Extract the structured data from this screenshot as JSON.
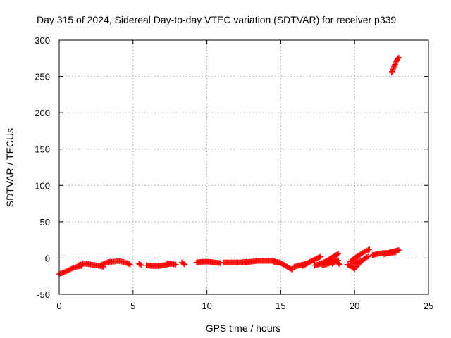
{
  "chart_data": {
    "type": "scatter",
    "title": "Day 315 of 2024, Sidereal Day-to-day VTEC variation (SDTVAR) for receiver p339",
    "xlabel": "GPS time / hours",
    "ylabel": "SDTVAR / TECUs",
    "xlim": [
      0,
      25
    ],
    "ylim": [
      -50,
      300
    ],
    "xticks": [
      0,
      5,
      10,
      15,
      20,
      25
    ],
    "yticks": [
      -50,
      0,
      50,
      100,
      150,
      200,
      250,
      300
    ],
    "grid": true,
    "marker": "plus",
    "series": [
      {
        "name": "SDTVAR",
        "color": "#ff0000",
        "segments": [
          [
            [
              0.0,
              -22
            ],
            [
              0.3,
              -20
            ],
            [
              0.6,
              -17
            ],
            [
              0.9,
              -14
            ],
            [
              1.2,
              -12
            ],
            [
              1.5,
              -11
            ]
          ],
          [
            [
              1.3,
              -10
            ],
            [
              1.6,
              -8
            ],
            [
              1.9,
              -8
            ],
            [
              2.2,
              -9
            ],
            [
              2.5,
              -10
            ],
            [
              2.8,
              -11
            ],
            [
              3.0,
              -12
            ]
          ],
          [
            [
              2.8,
              -10
            ],
            [
              3.1,
              -7
            ],
            [
              3.4,
              -5
            ],
            [
              3.7,
              -5
            ],
            [
              4.0,
              -4
            ],
            [
              4.3,
              -5
            ],
            [
              4.6,
              -7
            ],
            [
              4.8,
              -9
            ]
          ],
          [
            [
              5.4,
              -8
            ],
            [
              5.6,
              -10
            ]
          ],
          [
            [
              5.9,
              -10
            ],
            [
              6.3,
              -11
            ],
            [
              6.7,
              -11
            ],
            [
              7.1,
              -10
            ],
            [
              7.5,
              -8
            ]
          ],
          [
            [
              7.3,
              -7
            ],
            [
              7.6,
              -8
            ],
            [
              7.9,
              -9
            ]
          ],
          [
            [
              8.3,
              -6
            ],
            [
              8.5,
              -9
            ]
          ],
          [
            [
              9.3,
              -6
            ],
            [
              9.7,
              -5
            ],
            [
              10.1,
              -5
            ],
            [
              10.5,
              -6
            ],
            [
              10.9,
              -7
            ]
          ],
          [
            [
              11.1,
              -6
            ],
            [
              11.5,
              -6
            ],
            [
              11.9,
              -6
            ],
            [
              12.3,
              -6
            ],
            [
              12.7,
              -5
            ]
          ],
          [
            [
              12.6,
              -6
            ],
            [
              13.0,
              -5
            ],
            [
              13.4,
              -4
            ],
            [
              13.8,
              -4
            ],
            [
              14.2,
              -4
            ],
            [
              14.6,
              -4
            ]
          ],
          [
            [
              14.5,
              -5
            ],
            [
              14.9,
              -6
            ],
            [
              15.2,
              -9
            ],
            [
              15.5,
              -13
            ],
            [
              15.8,
              -16
            ]
          ],
          [
            [
              15.9,
              -12
            ],
            [
              16.3,
              -10
            ],
            [
              16.7,
              -8
            ]
          ],
          [
            [
              16.5,
              -11
            ],
            [
              16.9,
              -6
            ],
            [
              17.3,
              -2
            ],
            [
              17.7,
              2
            ]
          ],
          [
            [
              17.3,
              -10
            ],
            [
              17.7,
              -8
            ],
            [
              18.1,
              -4
            ],
            [
              18.5,
              1
            ],
            [
              18.9,
              6
            ]
          ],
          [
            [
              17.8,
              -10
            ],
            [
              18.2,
              -8
            ],
            [
              18.6,
              -5
            ],
            [
              18.9,
              -3
            ]
          ],
          [
            [
              18.5,
              -8
            ],
            [
              18.7,
              -4
            ],
            [
              19.0,
              -9
            ]
          ],
          [
            [
              19.5,
              -9
            ],
            [
              19.8,
              -12
            ],
            [
              20.0,
              -15
            ],
            [
              20.3,
              -8
            ],
            [
              20.6,
              -2
            ],
            [
              20.9,
              2
            ]
          ],
          [
            [
              19.7,
              -5
            ],
            [
              20.0,
              0
            ],
            [
              20.4,
              5
            ],
            [
              20.7,
              9
            ],
            [
              21.0,
              12
            ]
          ],
          [
            [
              19.9,
              -8
            ],
            [
              20.2,
              -5
            ],
            [
              20.5,
              -3
            ]
          ],
          [
            [
              21.2,
              4
            ],
            [
              21.6,
              6
            ],
            [
              22.0,
              7
            ],
            [
              22.4,
              7
            ],
            [
              22.8,
              8
            ]
          ],
          [
            [
              22.0,
              5
            ],
            [
              22.4,
              8
            ],
            [
              22.8,
              10
            ],
            [
              23.0,
              11
            ]
          ],
          [
            [
              22.5,
              255
            ],
            [
              22.6,
              260
            ],
            [
              22.7,
              265
            ],
            [
              22.8,
              270
            ],
            [
              22.9,
              274
            ],
            [
              23.0,
              276
            ]
          ]
        ]
      }
    ]
  }
}
